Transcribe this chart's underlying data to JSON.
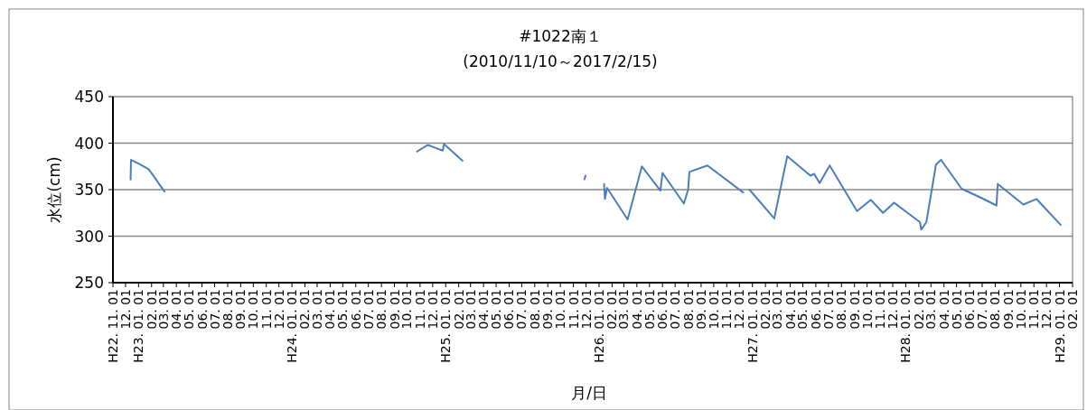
{
  "chart_data": {
    "type": "line",
    "title": "#1022南１",
    "subtitle": "(2010/11/10～2017/2/15)",
    "xlabel": "月/日",
    "ylabel": "水位(cm)",
    "ylim": [
      250,
      450
    ],
    "yticks": [
      250,
      300,
      350,
      400,
      450
    ],
    "grid": "y",
    "xlim": [
      "2010-11-01",
      "2017-02-01"
    ],
    "xticks": [
      {
        "value": "2010-11-01",
        "label": "H22. 11. 01"
      },
      {
        "value": "2010-12-01",
        "label": "12. 01"
      },
      {
        "value": "2011-01-01",
        "label": "H23. 01. 01"
      },
      {
        "value": "2011-02-01",
        "label": "02. 01"
      },
      {
        "value": "2011-03-01",
        "label": "03. 01"
      },
      {
        "value": "2011-04-01",
        "label": "04. 01"
      },
      {
        "value": "2011-05-01",
        "label": "05. 01"
      },
      {
        "value": "2011-06-01",
        "label": "06. 01"
      },
      {
        "value": "2011-07-01",
        "label": "07. 01"
      },
      {
        "value": "2011-08-01",
        "label": "08. 01"
      },
      {
        "value": "2011-09-01",
        "label": "09. 01"
      },
      {
        "value": "2011-10-01",
        "label": "10. 01"
      },
      {
        "value": "2011-11-01",
        "label": "11. 01"
      },
      {
        "value": "2011-12-01",
        "label": "12. 01"
      },
      {
        "value": "2012-01-01",
        "label": "H24. 01. 01"
      },
      {
        "value": "2012-02-01",
        "label": "02. 01"
      },
      {
        "value": "2012-03-01",
        "label": "03. 01"
      },
      {
        "value": "2012-04-01",
        "label": "04. 01"
      },
      {
        "value": "2012-05-01",
        "label": "05. 01"
      },
      {
        "value": "2012-06-01",
        "label": "06. 01"
      },
      {
        "value": "2012-07-01",
        "label": "07. 01"
      },
      {
        "value": "2012-08-01",
        "label": "08. 01"
      },
      {
        "value": "2012-09-01",
        "label": "09. 01"
      },
      {
        "value": "2012-10-01",
        "label": "10. 01"
      },
      {
        "value": "2012-11-01",
        "label": "11. 01"
      },
      {
        "value": "2012-12-01",
        "label": "12. 01"
      },
      {
        "value": "2013-01-01",
        "label": "H25. 01. 01"
      },
      {
        "value": "2013-02-01",
        "label": "02. 01"
      },
      {
        "value": "2013-03-01",
        "label": "03. 01"
      },
      {
        "value": "2013-04-01",
        "label": "04. 01"
      },
      {
        "value": "2013-05-01",
        "label": "05. 01"
      },
      {
        "value": "2013-06-01",
        "label": "06. 01"
      },
      {
        "value": "2013-07-01",
        "label": "07. 01"
      },
      {
        "value": "2013-08-01",
        "label": "08. 01"
      },
      {
        "value": "2013-09-01",
        "label": "09. 01"
      },
      {
        "value": "2013-10-01",
        "label": "10. 01"
      },
      {
        "value": "2013-11-01",
        "label": "11. 01"
      },
      {
        "value": "2013-12-01",
        "label": "12. 01"
      },
      {
        "value": "2014-01-01",
        "label": "H26. 01. 01"
      },
      {
        "value": "2014-02-01",
        "label": "02. 01"
      },
      {
        "value": "2014-03-01",
        "label": "03. 01"
      },
      {
        "value": "2014-04-01",
        "label": "04. 01"
      },
      {
        "value": "2014-05-01",
        "label": "05. 01"
      },
      {
        "value": "2014-06-01",
        "label": "06. 01"
      },
      {
        "value": "2014-07-01",
        "label": "07. 01"
      },
      {
        "value": "2014-08-01",
        "label": "08. 01"
      },
      {
        "value": "2014-09-01",
        "label": "09. 01"
      },
      {
        "value": "2014-10-01",
        "label": "10. 01"
      },
      {
        "value": "2014-11-01",
        "label": "11. 01"
      },
      {
        "value": "2014-12-01",
        "label": "12. 01"
      },
      {
        "value": "2015-01-01",
        "label": "H27. 01. 01"
      },
      {
        "value": "2015-02-01",
        "label": "02. 01"
      },
      {
        "value": "2015-03-01",
        "label": "03. 01"
      },
      {
        "value": "2015-04-01",
        "label": "04. 01"
      },
      {
        "value": "2015-05-01",
        "label": "05. 01"
      },
      {
        "value": "2015-06-01",
        "label": "06. 01"
      },
      {
        "value": "2015-07-01",
        "label": "07. 01"
      },
      {
        "value": "2015-08-01",
        "label": "08. 01"
      },
      {
        "value": "2015-09-01",
        "label": "09. 01"
      },
      {
        "value": "2015-10-01",
        "label": "10. 01"
      },
      {
        "value": "2015-11-01",
        "label": "11. 01"
      },
      {
        "value": "2015-12-01",
        "label": "12. 01"
      },
      {
        "value": "2016-01-01",
        "label": "H28. 01. 01"
      },
      {
        "value": "2016-02-01",
        "label": "02. 01"
      },
      {
        "value": "2016-03-01",
        "label": "03. 01"
      },
      {
        "value": "2016-04-01",
        "label": "04. 01"
      },
      {
        "value": "2016-05-01",
        "label": "05. 01"
      },
      {
        "value": "2016-06-01",
        "label": "06. 01"
      },
      {
        "value": "2016-07-01",
        "label": "07. 01"
      },
      {
        "value": "2016-08-01",
        "label": "08. 01"
      },
      {
        "value": "2016-09-01",
        "label": "09. 01"
      },
      {
        "value": "2016-10-01",
        "label": "10. 01"
      },
      {
        "value": "2016-11-01",
        "label": "11. 01"
      },
      {
        "value": "2016-12-01",
        "label": "12. 01"
      },
      {
        "value": "2017-01-01",
        "label": "H29. 01. 01"
      },
      {
        "value": "2017-02-01",
        "label": "02. 01"
      }
    ],
    "series": [
      {
        "color": "#4a7ebb",
        "x": [
          "2010-12-13",
          "2010-12-14",
          "2011-01-01",
          "2011-01-25",
          "2011-02-10",
          "2011-02-22",
          "2011-03-04"
        ],
        "values": [
          361,
          382,
          378,
          372,
          362,
          354,
          348
        ]
      },
      {
        "color": "#4a7ebb",
        "x": [
          "2012-10-25",
          "2012-11-19",
          "2012-12-07",
          "2012-12-25",
          "2012-12-28",
          "2013-01-19",
          "2013-02-10"
        ],
        "values": [
          391,
          398,
          395,
          392,
          399,
          390,
          381
        ]
      },
      {
        "color": "#4a7ebb",
        "x": [
          "2013-11-27",
          "2013-11-30"
        ],
        "values": [
          361,
          365
        ]
      },
      {
        "color": "#4a7ebb",
        "x": [
          "2014-01-13",
          "2014-01-15",
          "2014-01-20",
          "2014-03-10",
          "2014-04-13",
          "2014-05-27",
          "2014-06-01",
          "2014-07-22",
          "2014-08-01",
          "2014-08-04",
          "2014-09-16",
          "2014-12-10"
        ],
        "values": [
          356,
          340,
          352,
          318,
          375,
          349,
          368,
          335,
          350,
          369,
          376,
          347
        ]
      },
      {
        "color": "#4a7ebb",
        "x": [
          "2014-12-25",
          "2015-02-22",
          "2015-03-25",
          "2015-05-19",
          "2015-05-28",
          "2015-06-10",
          "2015-07-04",
          "2015-09-07",
          "2015-10-10",
          "2015-11-08",
          "2015-12-04",
          "2016-02-04",
          "2016-02-07",
          "2016-02-19",
          "2016-03-13",
          "2016-03-25",
          "2016-05-13",
          "2016-06-25",
          "2016-08-04",
          "2016-08-07",
          "2016-10-07",
          "2016-11-07",
          "2017-01-04"
        ],
        "values": [
          350,
          319,
          386,
          365,
          367,
          357,
          376,
          327,
          339,
          325,
          336,
          315,
          307,
          315,
          377,
          382,
          351,
          342,
          333,
          356,
          334,
          340,
          312
        ]
      }
    ]
  }
}
